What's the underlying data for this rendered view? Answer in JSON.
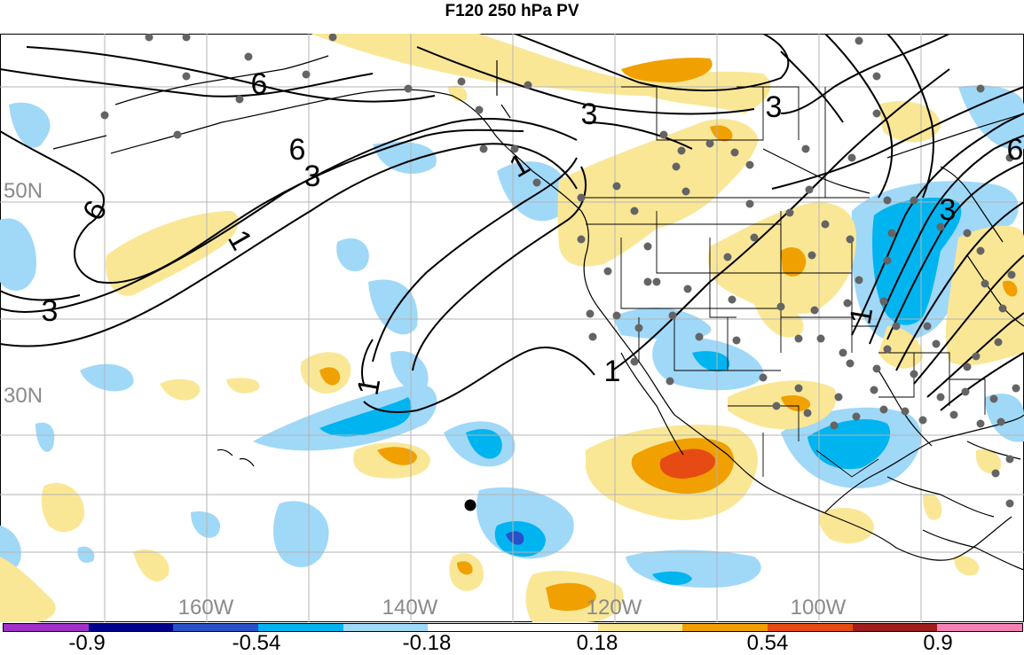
{
  "title": "F120 250 hPa PV",
  "map": {
    "lat_labels": [
      "50N",
      "30N"
    ],
    "lon_labels": [
      "160W",
      "140W",
      "120W",
      "100W"
    ],
    "contour_labels": [
      "6",
      "6",
      "6",
      "3",
      "3",
      "3",
      "3",
      "3",
      "1",
      "1",
      "1",
      "1",
      "1",
      "6"
    ]
  },
  "colorbar": {
    "colors": [
      "#a030c8",
      "#00008c",
      "#2850c8",
      "#00b4f0",
      "#a0d8f8",
      "#ffffff",
      "#ffffff",
      "#fae796",
      "#f0a000",
      "#e64b14",
      "#a01e1e",
      "#f582b4"
    ],
    "tick_labels": [
      "-0.9",
      "-0.54",
      "-0.18",
      "0.18",
      "0.54",
      "0.9"
    ]
  }
}
